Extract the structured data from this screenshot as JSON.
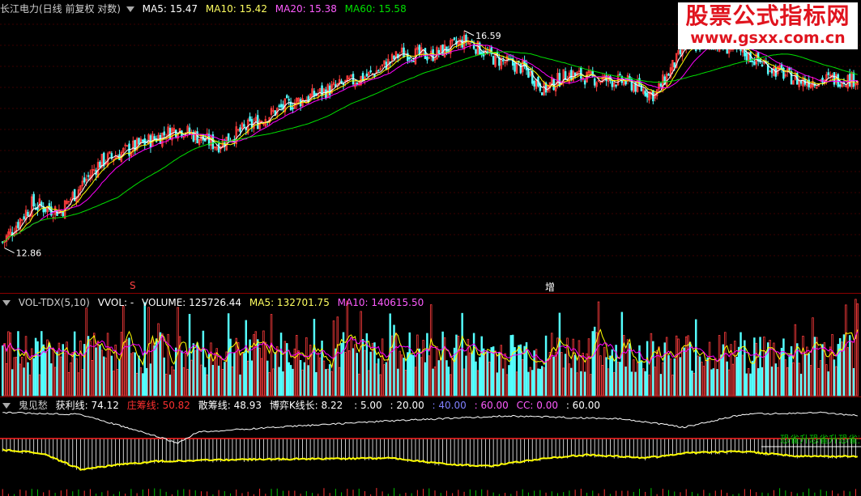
{
  "price_header": {
    "title": "长江电力(日线 前复权 对数)",
    "ma5": "MA5: 15.47",
    "ma10": "MA10: 15.42",
    "ma20": "MA20: 15.38",
    "ma60": "MA60: 15.58"
  },
  "vol_header": {
    "title": "VOL-TDX(5,10)",
    "vvol": "VVOL: -",
    "volume": "VOLUME: 125726.44",
    "ma5": "MA5: 132701.75",
    "ma10": "MA10: 140615.50"
  },
  "ind_header": {
    "title": "鬼见愁",
    "f1": "获利线: 74.12",
    "f2": "庄筹线: 50.82",
    "f3": "散筹线: 48.93",
    "f4": "博弈K线长: 8.22",
    "f5": ": 5.00",
    "f6": ": 20.00",
    "f7": ": 40.00",
    "f8": ": 60.00",
    "f9": "CC: 0.00",
    "f10": ": 60.00"
  },
  "labels": {
    "high": "16.59",
    "low": "12.86",
    "mark_s": "S",
    "mark_zeng": "增",
    "overlay_text": "恐雀升恐雀升恐雀升"
  },
  "watermark": {
    "line1": "股票公式指标网",
    "line2": "www.gsxx.com.cn"
  },
  "colors": {
    "up": "#ff3c3c",
    "down": "#54ffff",
    "ma5": "#ffffff",
    "ma10": "#ffff00",
    "ma20": "#ff00ff",
    "ma60": "#00e000",
    "header_ma5": "#ffffff",
    "header_ma10": "#ffff60",
    "header_ma20": "#ff5cff",
    "header_ma60": "#00e000"
  },
  "chart_data": {
    "type": "line",
    "ylim": [
      12.5,
      17.0
    ],
    "scale": "log",
    "grid": true,
    "price_waypoints": [
      [
        0,
        13.0
      ],
      [
        15,
        13.6
      ],
      [
        30,
        13.5
      ],
      [
        50,
        14.3
      ],
      [
        70,
        14.6
      ],
      [
        90,
        14.9
      ],
      [
        110,
        14.6
      ],
      [
        125,
        14.9
      ],
      [
        145,
        15.3
      ],
      [
        160,
        15.5
      ],
      [
        175,
        15.7
      ],
      [
        190,
        15.9
      ],
      [
        205,
        16.3
      ],
      [
        220,
        16.25
      ],
      [
        238,
        16.55
      ],
      [
        252,
        16.2
      ],
      [
        268,
        16.0
      ],
      [
        278,
        15.6
      ],
      [
        290,
        15.9
      ],
      [
        305,
        15.8
      ],
      [
        320,
        15.75
      ],
      [
        335,
        15.5
      ],
      [
        350,
        16.4
      ],
      [
        365,
        16.5
      ],
      [
        380,
        16.3
      ],
      [
        395,
        16.0
      ],
      [
        410,
        15.75
      ],
      [
        425,
        15.8
      ],
      [
        440,
        15.8
      ]
    ],
    "indicator_values": {
      "获利线": 74.12,
      "庄筹线": 50.82,
      "散筹线": 48.93,
      "博弈K线长": 8.22
    }
  }
}
